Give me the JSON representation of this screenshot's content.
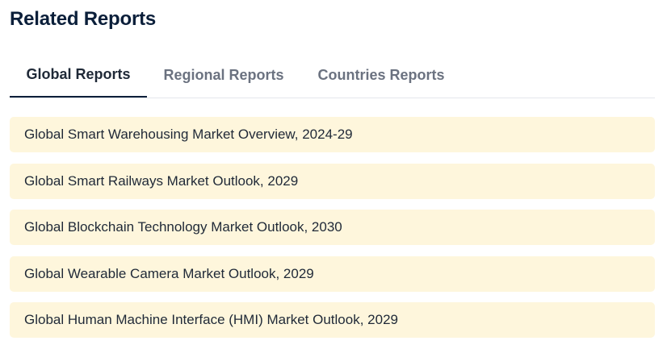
{
  "header": {
    "title": "Related Reports"
  },
  "tabs": [
    {
      "label": "Global Reports",
      "active": true
    },
    {
      "label": "Regional Reports",
      "active": false
    },
    {
      "label": "Countries Reports",
      "active": false
    }
  ],
  "reports": [
    {
      "title": "Global Smart Warehousing Market Overview, 2024-29"
    },
    {
      "title": "Global Smart Railways Market Outlook, 2029"
    },
    {
      "title": "Global Blockchain Technology Market Outlook, 2030"
    },
    {
      "title": "Global Wearable Camera Market Outlook, 2029"
    },
    {
      "title": "Global Human Machine Interface (HMI) Market Outlook, 2029"
    }
  ],
  "colors": {
    "title": "#0b1f3a",
    "active_tab_underline": "#0b1f3a",
    "inactive_tab_text": "#6b7280",
    "report_item_background": "#fef6dc"
  }
}
